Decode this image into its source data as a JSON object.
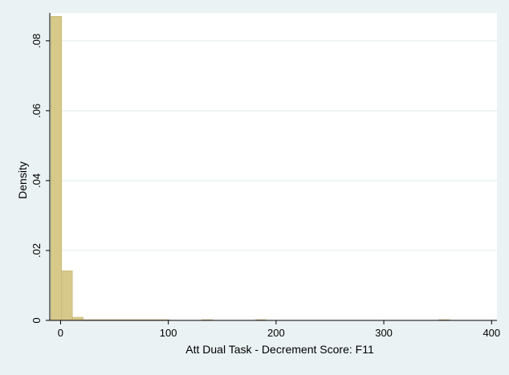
{
  "chart_data": {
    "type": "bar",
    "subtype": "histogram",
    "xlabel": "Att Dual Task - Decrement Score: F11",
    "ylabel": "Density",
    "xlim": [
      -10,
      405
    ],
    "ylim": [
      0,
      0.088
    ],
    "x_ticks": [
      0,
      100,
      200,
      300,
      400
    ],
    "x_tick_labels": [
      "0",
      "100",
      "200",
      "300",
      "400"
    ],
    "y_ticks": [
      0,
      0.02,
      0.04,
      0.06,
      0.08
    ],
    "y_tick_labels": [
      "0",
      ".02",
      ".04",
      ".06",
      ".08"
    ],
    "grid": true,
    "bin_width": 10,
    "bins": [
      {
        "x0": -9,
        "x1": 1,
        "density": 0.087
      },
      {
        "x0": 1,
        "x1": 11,
        "density": 0.0142
      },
      {
        "x0": 11,
        "x1": 21,
        "density": 0.0009
      },
      {
        "x0": 21,
        "x1": 31,
        "density": 0.0002
      },
      {
        "x0": 31,
        "x1": 41,
        "density": 0.0002
      },
      {
        "x0": 41,
        "x1": 51,
        "density": 0.0002
      },
      {
        "x0": 51,
        "x1": 61,
        "density": 0.0002
      },
      {
        "x0": 61,
        "x1": 71,
        "density": 0.0002
      },
      {
        "x0": 71,
        "x1": 81,
        "density": 0.0002
      },
      {
        "x0": 81,
        "x1": 91,
        "density": 0.0002
      },
      {
        "x0": 91,
        "x1": 101,
        "density": 0.0002
      },
      {
        "x0": 131,
        "x1": 141,
        "density": 0.0002
      },
      {
        "x0": 181,
        "x1": 191,
        "density": 0.0002
      },
      {
        "x0": 351,
        "x1": 361,
        "density": 0.0002
      }
    ],
    "colors": {
      "bar_fill": "#d6c98a",
      "bar_stroke": "#c3b46e",
      "plot_bg": "#ffffff",
      "outer_bg": "#eaf2f3",
      "grid": "#e6eeef",
      "axis": "#000000"
    }
  }
}
